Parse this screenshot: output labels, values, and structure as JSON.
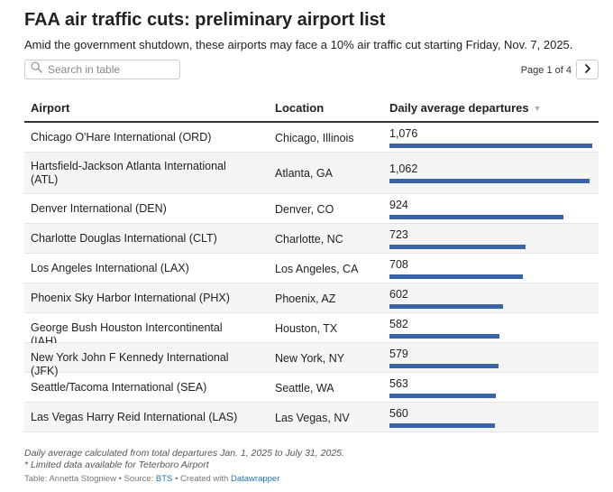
{
  "header": {
    "title": "FAA air traffic cuts: preliminary airport list",
    "subtitle": "Amid the government shutdown, these airports may face a 10% air traffic cut starting Friday, Nov. 7, 2025."
  },
  "search": {
    "placeholder": "Search in table",
    "icon": "search-icon"
  },
  "pager": {
    "label": "Page 1 of 4",
    "next_icon": "chevron-right-icon"
  },
  "table": {
    "columns": [
      "Airport",
      "Location",
      "Daily average departures"
    ],
    "sort_indicator": "▼",
    "bar_color": "#3a64a8",
    "bar_max": 1100,
    "rows": [
      {
        "airport": "Chicago O'Hare International (ORD)",
        "location": "Chicago, Illinois",
        "departures": "1,076",
        "value": 1076
      },
      {
        "airport": "Hartsfield-Jackson Atlanta International (ATL)",
        "location": "Atlanta, GA",
        "departures": "1,062",
        "value": 1062
      },
      {
        "airport": "Denver International (DEN)",
        "location": "Denver, CO",
        "departures": "924",
        "value": 924
      },
      {
        "airport": "Charlotte Douglas International (CLT)",
        "location": "Charlotte, NC",
        "departures": "723",
        "value": 723
      },
      {
        "airport": "Los Angeles International (LAX)",
        "location": "Los Angeles, CA",
        "departures": "708",
        "value": 708
      },
      {
        "airport": "Phoenix Sky Harbor International (PHX)",
        "location": "Phoenix, AZ",
        "departures": "602",
        "value": 602
      },
      {
        "airport": "George Bush Houston Intercontinental (IAH)",
        "location": "Houston, TX",
        "departures": "582",
        "value": 582
      },
      {
        "airport": "New York John F Kennedy International (JFK)",
        "location": "New York, NY",
        "departures": "579",
        "value": 579
      },
      {
        "airport": "Seattle/Tacoma International (SEA)",
        "location": "Seattle, WA",
        "departures": "563",
        "value": 563
      },
      {
        "airport": "Las Vegas Harry Reid International (LAS)",
        "location": "Las Vegas, NV",
        "departures": "560",
        "value": 560
      }
    ]
  },
  "notes": {
    "line1": "Daily average calculated from total departures Jan. 1, 2025 to July 31, 2025.",
    "line2": "* Limited data available for Teterboro Airport"
  },
  "credits": {
    "prefix": "Table: Annetta Stogniew • Source: ",
    "source_link": "BTS",
    "middle": " • Created with ",
    "tool_link": "Datawrapper"
  }
}
